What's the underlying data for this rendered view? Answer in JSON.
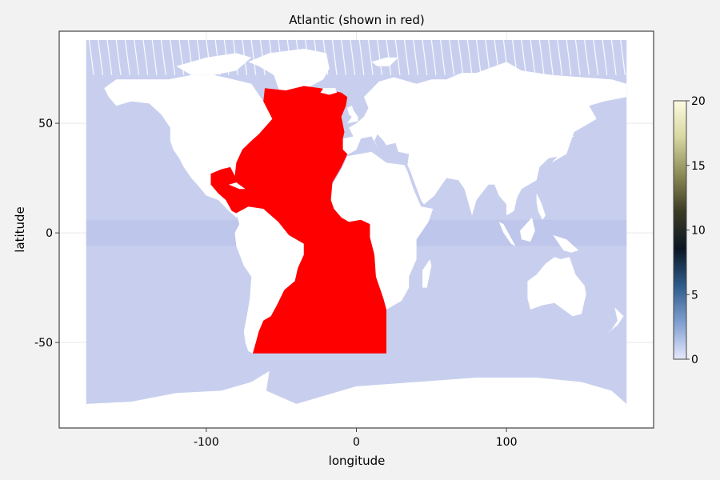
{
  "chart_data": {
    "type": "scatter",
    "title": "Atlantic (shown in red)",
    "xlabel": "longitude",
    "ylabel": "latitude",
    "xlim": [
      -180,
      180
    ],
    "ylim": [
      -80,
      88
    ],
    "xticks": [
      -100,
      0,
      100
    ],
    "yticks": [
      -50,
      0,
      50
    ],
    "grid": true,
    "series": [
      {
        "role": "ocean grid points (other basins)",
        "color": "#c8cfee",
        "lon_range": [
          -180,
          180
        ],
        "lat_range": [
          -80,
          88
        ]
      },
      {
        "role": "Atlantic grid points",
        "color": "#ff0000",
        "lon_range": [
          -70,
          20
        ],
        "lat_range": [
          -55,
          66
        ]
      }
    ],
    "colorbar": {
      "min": 0,
      "max": 20,
      "ticks": [
        0,
        5,
        10,
        15,
        20
      ],
      "tick_labels": [
        "0",
        "5",
        "10",
        "15",
        "20"
      ],
      "stops": [
        "#e6e8fb",
        "#7f9fd0",
        "#2d5a8a",
        "#0b1622",
        "#3b3b24",
        "#8c8a55",
        "#d8d6a0",
        "#fcfbe0"
      ]
    }
  }
}
